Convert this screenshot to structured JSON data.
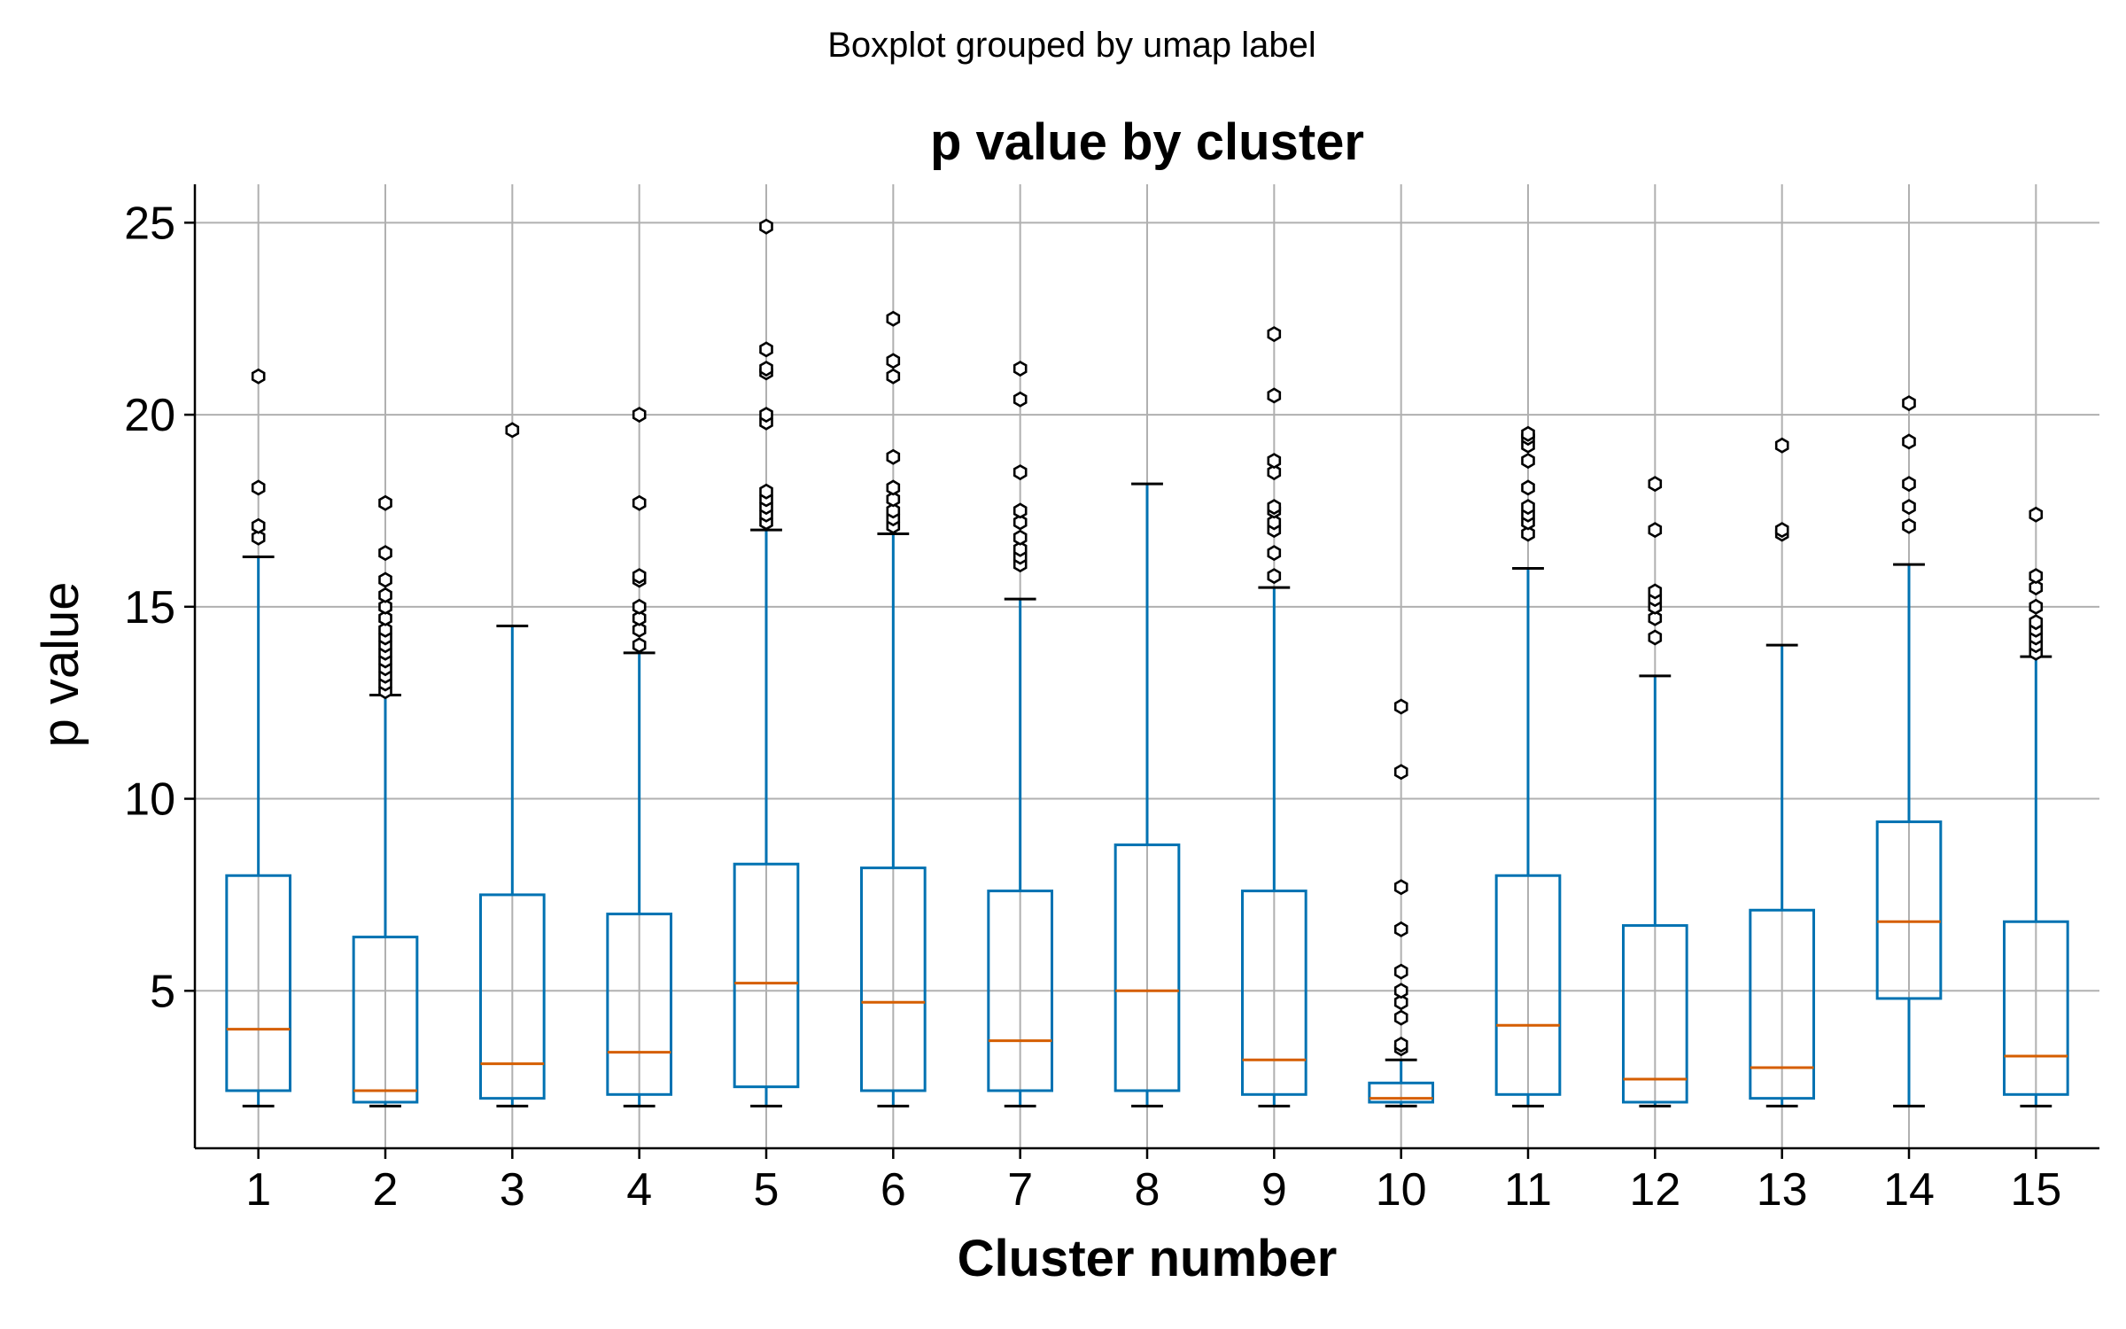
{
  "chart_data": {
    "type": "boxplot",
    "suptitle": "Boxplot grouped by umap label",
    "title": "p value by cluster",
    "xlabel": "Cluster number",
    "ylabel": "p value",
    "ylim": [
      0.9,
      26
    ],
    "yticks": [
      "5",
      "10",
      "15",
      "20",
      "25"
    ],
    "grid": true,
    "colors": {
      "box": "#0072b2",
      "median": "#d55e00",
      "cap": "#000000",
      "grid": "#b0b0b0",
      "axis": "#000000"
    },
    "categories": [
      "1",
      "2",
      "3",
      "4",
      "5",
      "6",
      "7",
      "8",
      "9",
      "10",
      "11",
      "12",
      "13",
      "14",
      "15"
    ],
    "boxes": [
      {
        "cluster": "1",
        "whislo": 2.0,
        "q1": 2.4,
        "med": 4.0,
        "q3": 8.0,
        "whishi": 16.3,
        "fliers": [
          16.8,
          17.1,
          18.1,
          21.0
        ]
      },
      {
        "cluster": "2",
        "whislo": 2.0,
        "q1": 2.1,
        "med": 2.4,
        "q3": 6.4,
        "whishi": 12.7,
        "fliers": [
          12.8,
          13.0,
          13.2,
          13.4,
          13.6,
          13.8,
          14.0,
          14.2,
          14.4,
          14.7,
          15.0,
          15.3,
          15.7,
          16.4,
          17.7
        ]
      },
      {
        "cluster": "3",
        "whislo": 2.0,
        "q1": 2.2,
        "med": 3.1,
        "q3": 7.5,
        "whishi": 14.5,
        "fliers": [
          19.6
        ]
      },
      {
        "cluster": "4",
        "whislo": 2.0,
        "q1": 2.3,
        "med": 3.4,
        "q3": 7.0,
        "whishi": 13.8,
        "fliers": [
          14.0,
          14.4,
          14.7,
          15.0,
          15.7,
          15.8,
          17.7,
          20.0
        ]
      },
      {
        "cluster": "5",
        "whislo": 2.0,
        "q1": 2.5,
        "med": 5.2,
        "q3": 8.3,
        "whishi": 17.0,
        "fliers": [
          17.2,
          17.4,
          17.6,
          17.8,
          18.0,
          19.8,
          20.0,
          21.1,
          21.2,
          21.7,
          24.9
        ]
      },
      {
        "cluster": "6",
        "whislo": 2.0,
        "q1": 2.4,
        "med": 4.7,
        "q3": 8.2,
        "whishi": 16.9,
        "fliers": [
          17.1,
          17.3,
          17.5,
          17.8,
          18.1,
          18.9,
          21.0,
          21.4,
          22.5
        ]
      },
      {
        "cluster": "7",
        "whislo": 2.0,
        "q1": 2.4,
        "med": 3.7,
        "q3": 7.6,
        "whishi": 15.2,
        "fliers": [
          16.1,
          16.3,
          16.5,
          16.8,
          17.2,
          17.5,
          18.5,
          20.4,
          21.2
        ]
      },
      {
        "cluster": "8",
        "whislo": 2.0,
        "q1": 2.4,
        "med": 5.0,
        "q3": 8.8,
        "whishi": 18.2,
        "fliers": []
      },
      {
        "cluster": "9",
        "whislo": 2.0,
        "q1": 2.3,
        "med": 3.2,
        "q3": 7.6,
        "whishi": 15.5,
        "fliers": [
          15.8,
          16.4,
          17.0,
          17.2,
          17.5,
          17.6,
          18.5,
          18.8,
          20.5,
          22.1
        ]
      },
      {
        "cluster": "10",
        "whislo": 2.0,
        "q1": 2.1,
        "med": 2.2,
        "q3": 2.6,
        "whishi": 3.2,
        "fliers": [
          3.5,
          3.6,
          4.3,
          4.7,
          5.0,
          5.5,
          6.6,
          7.7,
          10.7,
          12.4
        ]
      },
      {
        "cluster": "11",
        "whislo": 2.0,
        "q1": 2.3,
        "med": 4.1,
        "q3": 8.0,
        "whishi": 16.0,
        "fliers": [
          16.9,
          17.2,
          17.4,
          17.6,
          18.1,
          18.8,
          19.2,
          19.4,
          19.5
        ]
      },
      {
        "cluster": "12",
        "whislo": 2.0,
        "q1": 2.1,
        "med": 2.7,
        "q3": 6.7,
        "whishi": 13.2,
        "fliers": [
          14.2,
          14.7,
          15.0,
          15.2,
          15.4,
          17.0,
          18.2
        ]
      },
      {
        "cluster": "13",
        "whislo": 2.0,
        "q1": 2.2,
        "med": 3.0,
        "q3": 7.1,
        "whishi": 14.0,
        "fliers": [
          16.9,
          17.0,
          19.2
        ]
      },
      {
        "cluster": "14",
        "whislo": 2.0,
        "q1": 4.8,
        "med": 6.8,
        "q3": 9.4,
        "whishi": 16.1,
        "fliers": [
          17.1,
          17.6,
          18.2,
          19.3,
          20.3
        ]
      },
      {
        "cluster": "15",
        "whislo": 2.0,
        "q1": 2.3,
        "med": 3.3,
        "q3": 6.8,
        "whishi": 13.7,
        "fliers": [
          13.8,
          14.0,
          14.2,
          14.4,
          14.6,
          15.0,
          15.5,
          15.8,
          17.4
        ]
      }
    ]
  }
}
